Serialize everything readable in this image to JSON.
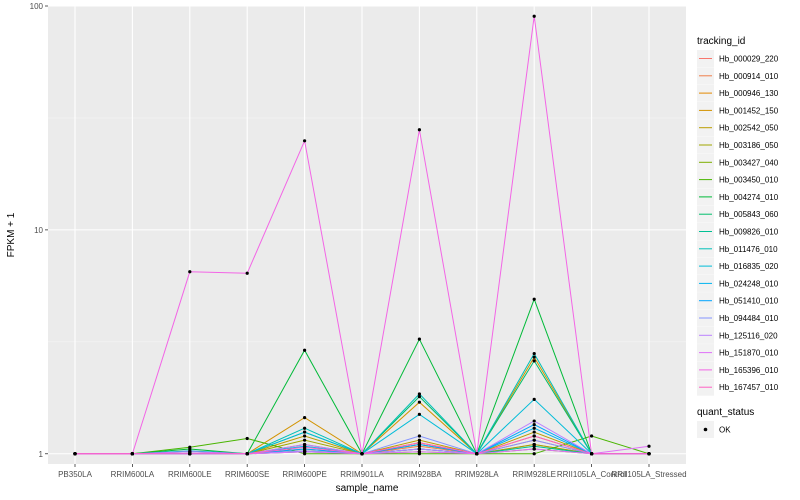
{
  "chart_data": {
    "type": "line",
    "title": "",
    "xlabel": "sample_name",
    "ylabel": "FPKM + 1",
    "yscale": "log10",
    "ylim": [
      0.9,
      100
    ],
    "yticks": [
      1,
      10,
      100
    ],
    "ytick_labels": [
      "1",
      "10",
      "100"
    ],
    "grid": true,
    "legend_position": "right",
    "categories": [
      "PB350LA",
      "RRIM600LA",
      "RRIM600LE",
      "RRIM600SE",
      "RRIM600PE",
      "RRIM901LA",
      "RRIM928BA",
      "RRIM928LA",
      "RRIM928LE",
      "RRII105LA_Control",
      "RRII105LA_Stressed"
    ],
    "legend_title": "tracking_id",
    "series": [
      {
        "name": "Hb_000029_220",
        "color": "#F8766D",
        "values": [
          1,
          1,
          1,
          1,
          1.02,
          1,
          1.05,
          1,
          1.1,
          1,
          1
        ]
      },
      {
        "name": "Hb_000914_010",
        "color": "#F07E4A",
        "values": [
          1,
          1,
          1,
          1,
          1.05,
          1,
          1.08,
          1,
          1.15,
          1,
          1
        ]
      },
      {
        "name": "Hb_000946_130",
        "color": "#E38900",
        "values": [
          1,
          1,
          1,
          1,
          1.1,
          1,
          1.12,
          1,
          1.2,
          1,
          1
        ]
      },
      {
        "name": "Hb_001452_150",
        "color": "#D29300",
        "values": [
          1,
          1,
          1,
          1,
          1.45,
          1,
          1.7,
          1,
          2.7,
          1,
          1
        ]
      },
      {
        "name": "Hb_002542_050",
        "color": "#BB9D00",
        "values": [
          1,
          1,
          1,
          1,
          1.2,
          1,
          1.15,
          1,
          1.25,
          1,
          1
        ]
      },
      {
        "name": "Hb_003186_050",
        "color": "#A0A600",
        "values": [
          1,
          1,
          1,
          1,
          1.15,
          1,
          1.1,
          1,
          1.1,
          1,
          1
        ]
      },
      {
        "name": "Hb_003427_040",
        "color": "#7CAE00",
        "values": [
          1,
          1,
          1,
          1,
          1.03,
          1,
          1.02,
          1,
          1.05,
          1,
          1
        ]
      },
      {
        "name": "Hb_003450_010",
        "color": "#49B500",
        "values": [
          1,
          1,
          1.07,
          1.17,
          1,
          1,
          1,
          1,
          1,
          1.2,
          1
        ]
      },
      {
        "name": "Hb_004274_010",
        "color": "#00BA38",
        "values": [
          1,
          1,
          1.05,
          1,
          2.9,
          1,
          3.25,
          1,
          4.9,
          1,
          1
        ]
      },
      {
        "name": "Hb_005843_060",
        "color": "#00BE6C",
        "values": [
          1,
          1,
          1.02,
          1,
          1.25,
          1,
          1.8,
          1,
          2.6,
          1,
          1
        ]
      },
      {
        "name": "Hb_009826_010",
        "color": "#00C094",
        "values": [
          1,
          1,
          1,
          1,
          1.02,
          1,
          1.05,
          1,
          1.08,
          1,
          1
        ]
      },
      {
        "name": "Hb_011476_010",
        "color": "#00C0B8",
        "values": [
          1,
          1,
          1,
          1,
          1.3,
          1,
          1.85,
          1,
          2.8,
          1,
          1
        ]
      },
      {
        "name": "Hb_016835_020",
        "color": "#00BCD8",
        "values": [
          1,
          1,
          1.03,
          1,
          1.25,
          1,
          1.5,
          1,
          1.75,
          1,
          1
        ]
      },
      {
        "name": "Hb_024248_010",
        "color": "#00B4EF",
        "values": [
          1,
          1,
          1,
          1,
          1.08,
          1,
          1.05,
          1,
          1.3,
          1,
          1
        ]
      },
      {
        "name": "Hb_051410_010",
        "color": "#00A5FF",
        "values": [
          1,
          1,
          1,
          1,
          1.05,
          1,
          1.1,
          1,
          1.35,
          1,
          1
        ]
      },
      {
        "name": "Hb_094484_010",
        "color": "#8494FF",
        "values": [
          1,
          1,
          1,
          1,
          1.03,
          1,
          1.2,
          1,
          1.15,
          1,
          1
        ]
      },
      {
        "name": "Hb_125116_020",
        "color": "#BB81FF",
        "values": [
          1,
          1,
          1,
          1,
          1.1,
          1,
          1.05,
          1,
          1.4,
          1,
          1
        ]
      },
      {
        "name": "Hb_151870_010",
        "color": "#DF70F8",
        "values": [
          1,
          1,
          1.02,
          1,
          1.02,
          1,
          1.02,
          1,
          1.05,
          1,
          1.08
        ]
      },
      {
        "name": "Hb_165396_010",
        "color": "#F365E6",
        "values": [
          1,
          1,
          6.5,
          6.4,
          25,
          1,
          28,
          1,
          90,
          1,
          1
        ]
      },
      {
        "name": "Hb_167457_010",
        "color": "#FF61C3",
        "values": [
          1,
          1,
          1,
          1,
          1.07,
          1,
          1.12,
          1,
          1.2,
          1,
          1
        ]
      }
    ],
    "series_extra_colors": [
      "#FF67A4",
      "#FF6C91"
    ],
    "shape_legend": {
      "title": "quant_status",
      "items": [
        {
          "label": "OK"
        }
      ]
    }
  }
}
